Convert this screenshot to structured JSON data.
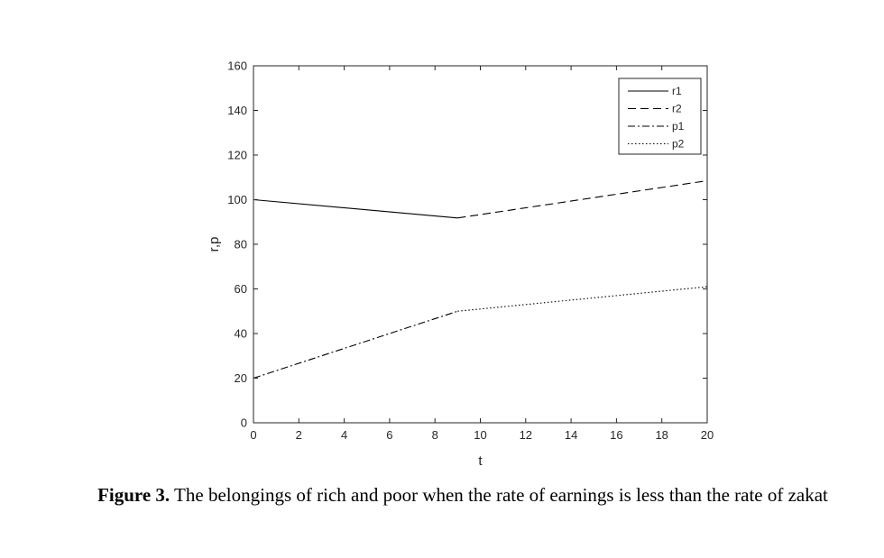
{
  "chart_data": {
    "type": "line",
    "xlabel": "t",
    "ylabel": "r,p",
    "xlim": [
      0,
      20
    ],
    "ylim": [
      0,
      160
    ],
    "xticks": [
      0,
      2,
      4,
      6,
      8,
      10,
      12,
      14,
      16,
      18,
      20
    ],
    "yticks": [
      0,
      20,
      40,
      60,
      80,
      100,
      120,
      140,
      160
    ],
    "grid": false,
    "legend_position": "top-right",
    "series": [
      {
        "name": "r1",
        "style": "solid",
        "x": [
          0,
          9
        ],
        "y": [
          100,
          91.8
        ]
      },
      {
        "name": "r2",
        "style": "dashed",
        "x": [
          9,
          20
        ],
        "y": [
          91.8,
          108.5
        ]
      },
      {
        "name": "p1",
        "style": "dashdot",
        "x": [
          0,
          9
        ],
        "y": [
          20,
          50
        ]
      },
      {
        "name": "p2",
        "style": "dotted",
        "x": [
          9,
          20
        ],
        "y": [
          50,
          61
        ]
      }
    ]
  },
  "caption": {
    "label": "Figure 3.",
    "text": " The belongings of rich and poor when the rate of earnings is less than the rate of zakat"
  },
  "colors": {
    "line": "#000000",
    "axis": "#262626"
  }
}
